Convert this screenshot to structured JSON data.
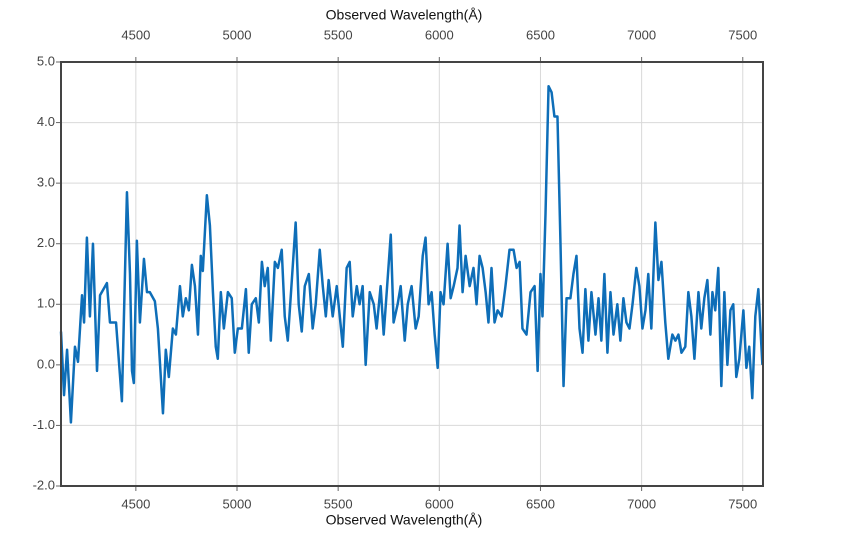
{
  "chart_data": {
    "type": "line",
    "x_label": "Observed Wavelength(Å)",
    "color": "#0e6eb8",
    "grid": true,
    "xlim": [
      4130,
      7600
    ],
    "ylim": [
      -2,
      5
    ],
    "xticks": [
      4500,
      5000,
      5500,
      6000,
      6500,
      7000,
      7500
    ],
    "yticks": [
      {
        "value": 5,
        "label": "5.0"
      },
      {
        "value": 4,
        "label": "4.0"
      },
      {
        "value": 3,
        "label": "3.0"
      },
      {
        "value": 2,
        "label": "2.0"
      },
      {
        "value": 1,
        "label": "1.0"
      },
      {
        "value": 0,
        "label": "0.0"
      },
      {
        "value": -1,
        "label": "-1.0"
      },
      {
        "value": -2,
        "label": "-2.0"
      }
    ],
    "x": [
      4130,
      4145,
      4160,
      4179,
      4199,
      4214,
      4234,
      4244,
      4258,
      4273,
      4288,
      4308,
      4323,
      4357,
      4372,
      4402,
      4431,
      4456,
      4471,
      4481,
      4490,
      4505,
      4520,
      4540,
      4555,
      4569,
      4594,
      4609,
      4634,
      4648,
      4663,
      4683,
      4698,
      4718,
      4732,
      4747,
      4762,
      4777,
      4792,
      4807,
      4821,
      4831,
      4851,
      4866,
      4881,
      4895,
      4905,
      4920,
      4935,
      4955,
      4974,
      4989,
      5004,
      5024,
      5044,
      5058,
      5073,
      5093,
      5108,
      5123,
      5137,
      5152,
      5167,
      5187,
      5202,
      5221,
      5236,
      5251,
      5271,
      5290,
      5305,
      5320,
      5335,
      5355,
      5374,
      5389,
      5409,
      5424,
      5439,
      5453,
      5473,
      5493,
      5508,
      5523,
      5542,
      5557,
      5572,
      5592,
      5606,
      5621,
      5636,
      5656,
      5676,
      5690,
      5710,
      5725,
      5740,
      5760,
      5774,
      5794,
      5809,
      5829,
      5844,
      5863,
      5883,
      5898,
      5918,
      5932,
      5947,
      5962,
      5977,
      5992,
      6006,
      6021,
      6041,
      6056,
      6071,
      6090,
      6100,
      6115,
      6130,
      6150,
      6169,
      6184,
      6199,
      6214,
      6229,
      6243,
      6258,
      6273,
      6288,
      6308,
      6327,
      6347,
      6367,
      6382,
      6397,
      6411,
      6431,
      6451,
      6471,
      6486,
      6500,
      6510,
      6525,
      6540,
      6555,
      6569,
      6584,
      6599,
      6614,
      6629,
      6648,
      6663,
      6678,
      6693,
      6708,
      6722,
      6737,
      6752,
      6772,
      6787,
      6801,
      6816,
      6831,
      6846,
      6861,
      6880,
      6895,
      6910,
      6925,
      6940,
      6955,
      6974,
      6989,
      7004,
      7019,
      7033,
      7048,
      7068,
      7083,
      7098,
      7117,
      7132,
      7152,
      7167,
      7182,
      7197,
      7216,
      7231,
      7246,
      7261,
      7281,
      7295,
      7310,
      7325,
      7340,
      7350,
      7364,
      7379,
      7394,
      7409,
      7424,
      7439,
      7453,
      7468,
      7483,
      7503,
      7518,
      7532,
      7547,
      7562,
      7577,
      7597
    ],
    "values": [
      0.55,
      -0.5,
      0.25,
      -0.95,
      0.3,
      0.05,
      1.15,
      0.7,
      2.1,
      0.8,
      2.0,
      -0.1,
      1.15,
      1.35,
      0.7,
      0.7,
      -0.6,
      2.85,
      1.5,
      -0.1,
      -0.3,
      2.05,
      0.7,
      1.75,
      1.2,
      1.2,
      1.05,
      0.6,
      -0.8,
      0.25,
      -0.2,
      0.6,
      0.5,
      1.3,
      0.8,
      1.1,
      0.9,
      1.65,
      1.3,
      0.5,
      1.8,
      1.55,
      2.8,
      2.3,
      1.2,
      0.3,
      0.1,
      1.2,
      0.6,
      1.2,
      1.1,
      0.2,
      0.6,
      0.6,
      1.25,
      0.2,
      1.0,
      1.1,
      0.7,
      1.7,
      1.3,
      1.6,
      0.4,
      1.7,
      1.6,
      1.9,
      0.8,
      0.4,
      1.4,
      2.35,
      1.0,
      0.55,
      1.3,
      1.5,
      0.6,
      1.0,
      1.9,
      1.3,
      0.8,
      1.4,
      0.8,
      1.3,
      0.8,
      0.3,
      1.6,
      1.7,
      0.8,
      1.3,
      1.0,
      1.3,
      0.0,
      1.2,
      1.0,
      0.6,
      1.3,
      0.5,
      1.2,
      2.15,
      0.7,
      1.0,
      1.3,
      0.4,
      1.0,
      1.3,
      0.6,
      0.8,
      1.8,
      2.1,
      1.0,
      1.2,
      0.5,
      -0.05,
      1.2,
      1.0,
      2.0,
      1.1,
      1.3,
      1.6,
      2.3,
      1.2,
      1.8,
      1.3,
      1.6,
      1.0,
      1.8,
      1.6,
      1.2,
      0.7,
      1.6,
      0.7,
      0.9,
      0.8,
      1.3,
      1.9,
      1.9,
      1.6,
      1.7,
      0.6,
      0.5,
      1.2,
      1.3,
      -0.1,
      1.5,
      0.8,
      2.5,
      4.6,
      4.5,
      4.1,
      4.1,
      2.0,
      -0.35,
      1.1,
      1.1,
      1.5,
      1.8,
      0.6,
      0.2,
      1.25,
      0.4,
      1.2,
      0.5,
      1.1,
      0.4,
      1.5,
      0.2,
      1.2,
      0.5,
      1.0,
      0.4,
      1.1,
      0.7,
      0.6,
      1.0,
      1.6,
      1.3,
      0.6,
      0.9,
      1.5,
      0.6,
      2.35,
      1.4,
      1.7,
      0.7,
      0.1,
      0.5,
      0.4,
      0.5,
      0.2,
      0.3,
      1.2,
      0.8,
      0.1,
      1.2,
      0.6,
      1.1,
      1.4,
      0.5,
      1.2,
      0.9,
      1.6,
      -0.35,
      1.2,
      0.0,
      0.9,
      1.0,
      -0.2,
      0.1,
      0.9,
      -0.05,
      0.3,
      -0.55,
      0.8,
      1.25,
      0.0
    ]
  }
}
